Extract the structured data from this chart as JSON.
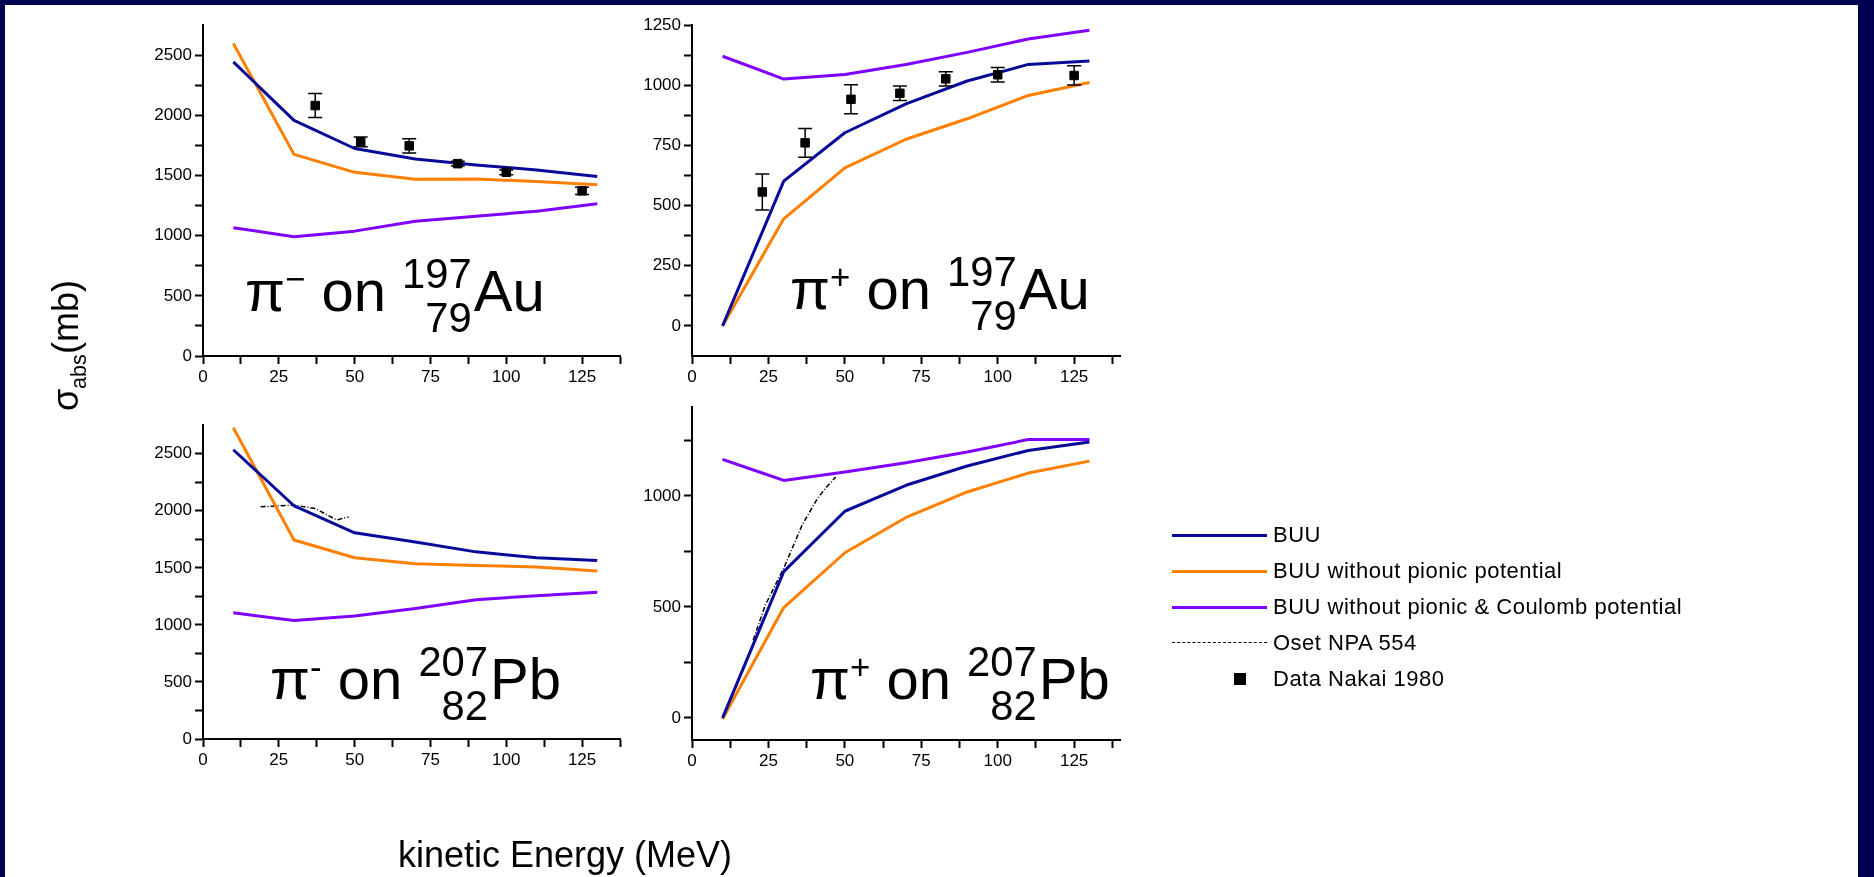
{
  "chart_data": [
    {
      "type": "line",
      "legend": "right",
      "ylabel": "σ$_{abs}$(mb)",
      "annotations": [
        "π$^{−}$ on $^{197}$$_{79}$Au"
      ],
      "x": [
        10,
        30,
        50,
        70,
        90,
        110,
        130
      ],
      "xlim": [
        0,
        137.5
      ],
      "ylim": [
        0,
        2750
      ],
      "xticks": [
        0,
        {
          "value": 12.5,
          "label": null
        },
        25,
        {
          "value": 37.5,
          "label": null
        },
        50,
        {
          "value": 62.5,
          "label": null
        },
        75,
        {
          "value": 87.5,
          "label": null
        },
        100,
        {
          "value": 112.5,
          "label": null
        },
        125,
        {
          "value": 137.5,
          "label": null
        }
      ],
      "yticks": [
        0,
        {
          "value": 250,
          "label": null
        },
        500,
        {
          "value": 750,
          "label": null
        },
        1000,
        {
          "value": 1250,
          "label": null
        },
        1500,
        {
          "value": 1750,
          "label": null
        },
        2000,
        {
          "value": 2250,
          "label": null
        },
        2500
      ],
      "series": [
        {
          "name": "BUU",
          "color": "#0a0a9a",
          "values": [
            2445,
            1959,
            1725,
            1637,
            1588,
            1547,
            1492
          ]
        },
        {
          "name": "BUU without pionic potential",
          "color": "#ff8000",
          "values": [
            2599,
            1676,
            1527,
            1470,
            1472,
            1450,
            1423
          ]
        },
        {
          "name": "BUU without pionic & Coulomb potential",
          "color": "#8000ff",
          "values": [
            1066,
            992,
            1038,
            1121,
            1162,
            1203,
            1266
          ]
        },
        {
          "name": "Data Nakai 1980",
          "type": "scatter",
          "marker": "square",
          "color": "#000000",
          "x": [
            37,
            52,
            68,
            84,
            100,
            125
          ],
          "values": [
            2082,
            1780,
            1747,
            1599,
            1527,
            1373
          ],
          "errors": [
            100,
            40,
            60,
            20,
            20,
            30
          ]
        }
      ]
    },
    {
      "type": "line",
      "annotations": [
        "π$^{+}$ on $^{197}$$_{79}$Au"
      ],
      "x": [
        10,
        30,
        50,
        70,
        90,
        110,
        130
      ],
      "xlim": [
        0,
        140
      ],
      "ylim": [
        -125,
        1250
      ],
      "xticks": [
        0,
        {
          "value": 12.5,
          "label": null
        },
        25,
        {
          "value": 37.5,
          "label": null
        },
        50,
        {
          "value": 62.5,
          "label": null
        },
        75,
        {
          "value": 87.5,
          "label": null
        },
        100,
        {
          "value": 112.5,
          "label": null
        },
        125,
        {
          "value": 137.5,
          "label": null
        }
      ],
      "yticks": [
        0,
        {
          "value": 125,
          "label": null
        },
        250,
        {
          "value": 375,
          "label": null
        },
        500,
        {
          "value": 625,
          "label": null
        },
        750,
        {
          "value": 875,
          "label": null
        },
        1000,
        {
          "value": 1125,
          "label": null
        },
        1250
      ],
      "series": [
        {
          "color": "#0a0a9a",
          "values": [
            0,
            602,
            803,
            923,
            1018,
            1087,
            1101
          ]
        },
        {
          "color": "#ff8000",
          "values": [
            0,
            445,
            657,
            776,
            861,
            958,
            1012
          ]
        },
        {
          "color": "#8000ff",
          "values": [
            1121,
            1026,
            1045,
            1087,
            1137,
            1193,
            1229
          ]
        },
        {
          "type": "scatter",
          "marker": "square",
          "color": "#000000",
          "x": [
            23,
            37,
            52,
            68,
            83,
            100,
            125
          ],
          "values": [
            557,
            761,
            942,
            967,
            1027,
            1044,
            1041
          ],
          "errors": [
            75,
            60,
            60,
            30,
            30,
            30,
            40
          ]
        }
      ]
    },
    {
      "type": "line",
      "legend": "right",
      "xlabel": "kinetic Energy (MeV)",
      "annotations": [
        "π$^{-}$ on $^{207}$$_{82}$Pb"
      ],
      "x": [
        10,
        30,
        50,
        70,
        90,
        110,
        130
      ],
      "xlim": [
        0,
        137.5
      ],
      "ylim": [
        0,
        2750
      ],
      "xticks": [
        0,
        {
          "value": 12.5,
          "label": null
        },
        25,
        {
          "value": 37.5,
          "label": null
        },
        50,
        {
          "value": 62.5,
          "label": null
        },
        75,
        {
          "value": 87.5,
          "label": null
        },
        100,
        {
          "value": 112.5,
          "label": null
        },
        125,
        {
          "value": 137.5,
          "label": null
        }
      ],
      "yticks": [
        0,
        {
          "value": 250,
          "label": null
        },
        500,
        {
          "value": 750,
          "label": null
        },
        1000,
        {
          "value": 1250,
          "label": null
        },
        1500,
        {
          "value": 1750,
          "label": null
        },
        2000,
        {
          "value": 2250,
          "label": null
        },
        2500
      ],
      "series": [
        {
          "name": "BUU",
          "color": "#0a0a9a",
          "values": [
            2535,
            2044,
            1807,
            1726,
            1640,
            1588,
            1565
          ]
        },
        {
          "name": "BUU without pionic potential",
          "color": "#ff8000",
          "values": [
            2728,
            1744,
            1588,
            1536,
            1521,
            1507,
            1472
          ]
        },
        {
          "name": "BUU without pionic & Coulomb potential",
          "color": "#8000ff",
          "values": [
            1106,
            1039,
            1077,
            1143,
            1221,
            1256,
            1285
          ]
        },
        {
          "name": "Oset NPA 554",
          "color": "#000000",
          "line_style": "dashed",
          "x": [
            19,
            30,
            37,
            44,
            48
          ],
          "values": [
            2035,
            2050,
            2020,
            1920,
            1945
          ]
        }
      ]
    },
    {
      "type": "line",
      "annotations": [
        "π$^{+}$ on $^{207}$$_{82}$Pb"
      ],
      "x": [
        10,
        30,
        50,
        70,
        90,
        110,
        130
      ],
      "xlim": [
        0,
        140
      ],
      "ylim": [
        -100,
        1400
      ],
      "xticks": [
        0,
        {
          "value": 12.5,
          "label": null
        },
        25,
        {
          "value": 37.5,
          "label": null
        },
        50,
        {
          "value": 62.5,
          "label": null
        },
        75,
        {
          "value": 87.5,
          "label": null
        },
        100,
        {
          "value": 112.5,
          "label": null
        },
        125,
        {
          "value": 137.5,
          "label": null
        }
      ],
      "yticks": [
        0,
        {
          "value": 250,
          "label": null
        },
        500,
        {
          "value": 750,
          "label": null
        },
        1000,
        {
          "value": 1250,
          "label": null
        }
      ],
      "series": [
        {
          "color": "#0a0a9a",
          "values": [
            0,
            659,
            931,
            1048,
            1135,
            1205,
            1243
          ]
        },
        {
          "color": "#ff8000",
          "values": [
            -5,
            497,
            744,
            903,
            1018,
            1103,
            1157
          ]
        },
        {
          "color": "#8000ff",
          "values": [
            1165,
            1070,
            1108,
            1150,
            1198,
            1254,
            1254
          ]
        },
        {
          "color": "#000000",
          "line_style": "dashed",
          "x": [
            20,
            24,
            30,
            36,
            41,
            44,
            47
          ],
          "values": [
            350,
            509,
            674,
            868,
            988,
            1040,
            1085
          ]
        }
      ]
    }
  ]
}
